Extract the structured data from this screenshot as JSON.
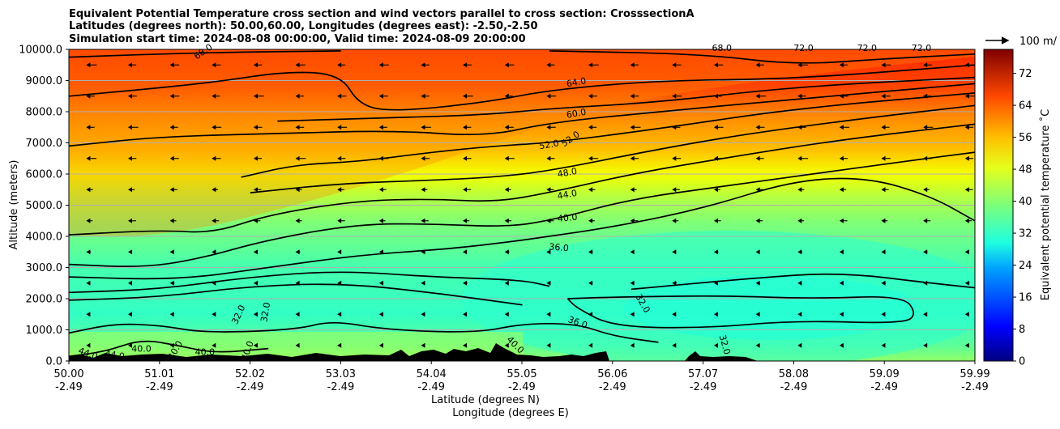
{
  "chart_data": {
    "type": "contour",
    "title_lines": [
      "Equivalent Potential Temperature cross section and wind vectors parallel to cross section: CrosssectionA",
      "Latitudes (degrees north): 50.00,60.00, Longitudes (degrees east): -2.50,-2.50",
      "Simulation start time: 2024-08-08 00:00:00, Valid time: 2024-08-09 20:00:00"
    ],
    "ylabel": "Altitude (meters)",
    "xlabel_lines": [
      "Latitude (degrees N)",
      "Longitude (degrees E)"
    ],
    "ylim": [
      0,
      10000
    ],
    "y_ticks": [
      "0.0",
      "1000.0",
      "2000.0",
      "3000.0",
      "4000.0",
      "5000.0",
      "6000.0",
      "7000.0",
      "8000.0",
      "9000.0",
      "10000.0"
    ],
    "x_ticks": [
      {
        "lat": "50.00",
        "lon": "-2.49"
      },
      {
        "lat": "51.01",
        "lon": "-2.49"
      },
      {
        "lat": "52.02",
        "lon": "-2.49"
      },
      {
        "lat": "53.03",
        "lon": "-2.49"
      },
      {
        "lat": "54.04",
        "lon": "-2.49"
      },
      {
        "lat": "55.05",
        "lon": "-2.49"
      },
      {
        "lat": "56.06",
        "lon": "-2.49"
      },
      {
        "lat": "57.07",
        "lon": "-2.49"
      },
      {
        "lat": "58.08",
        "lon": "-2.49"
      },
      {
        "lat": "59.09",
        "lon": "-2.49"
      },
      {
        "lat": "59.99",
        "lon": "-2.49"
      }
    ],
    "colorbar": {
      "label": "Equivalent potential temperature ˚C",
      "ticks": [
        "0",
        "8",
        "16",
        "24",
        "32",
        "40",
        "48",
        "56",
        "64",
        "72"
      ],
      "range": [
        0,
        78
      ]
    },
    "quiver_key": "100 m/",
    "contour_levels": [
      32,
      36,
      40,
      44,
      48,
      52,
      56,
      60,
      64,
      68
    ],
    "contour_labels": [
      "68.0",
      "64.0",
      "60.0",
      "52.0",
      "52.0",
      "48.0",
      "44.0",
      "40.0",
      "36.0",
      "36.0",
      "32.0",
      "32.0",
      "32.0",
      "32.0",
      "40.0",
      "40.0",
      "40.0",
      "40.0",
      "40.0",
      "44.0",
      "44.0",
      "68.0",
      "72.0",
      "72.0",
      "72.0"
    ],
    "contours": [
      {
        "level": 68,
        "points": [
          [
            50.0,
            9750
          ],
          [
            51.5,
            9900
          ],
          [
            53.0,
            9950
          ]
        ]
      },
      {
        "level": 68,
        "points": [
          [
            55.3,
            9950
          ],
          [
            57.0,
            9850
          ],
          [
            58.0,
            9500
          ],
          [
            59.0,
            9700
          ],
          [
            59.99,
            9850
          ]
        ]
      },
      {
        "level": 64,
        "points": [
          [
            50.0,
            8500
          ],
          [
            51.5,
            8900
          ],
          [
            52.4,
            9300
          ],
          [
            53.0,
            9200
          ],
          [
            53.2,
            8200
          ],
          [
            53.6,
            8000
          ],
          [
            54.6,
            8300
          ],
          [
            55.3,
            8700
          ],
          [
            56.5,
            9000
          ],
          [
            58.0,
            9050
          ],
          [
            59.99,
            9500
          ]
        ]
      },
      {
        "level": 60,
        "points": [
          [
            52.3,
            7700
          ],
          [
            53.5,
            7800
          ],
          [
            54.6,
            7900
          ],
          [
            55.3,
            8100
          ],
          [
            56.5,
            8300
          ],
          [
            58.0,
            8800
          ],
          [
            59.99,
            9100
          ]
        ]
      },
      {
        "level": 56,
        "points": [
          [
            50.0,
            6900
          ],
          [
            51.0,
            7200
          ],
          [
            52.3,
            7300
          ],
          [
            53.6,
            7400
          ],
          [
            54.6,
            7200
          ],
          [
            55.3,
            7650
          ],
          [
            56.5,
            8000
          ],
          [
            58.0,
            8400
          ],
          [
            59.99,
            8900
          ]
        ]
      },
      {
        "level": 52,
        "points": [
          [
            51.9,
            5900
          ],
          [
            52.5,
            6300
          ],
          [
            53.2,
            6400
          ],
          [
            54.0,
            6700
          ],
          [
            54.7,
            6900
          ],
          [
            55.3,
            7000
          ],
          [
            56.5,
            7450
          ],
          [
            58.0,
            8100
          ],
          [
            59.99,
            8600
          ]
        ]
      },
      {
        "level": 48,
        "points": [
          [
            52.0,
            5400
          ],
          [
            53.0,
            5700
          ],
          [
            54.0,
            5800
          ],
          [
            54.7,
            5900
          ],
          [
            55.3,
            6100
          ],
          [
            56.5,
            6800
          ],
          [
            57.5,
            7300
          ],
          [
            58.8,
            7800
          ],
          [
            59.99,
            8200
          ]
        ]
      },
      {
        "level": 44,
        "points": [
          [
            50.0,
            4050
          ],
          [
            51.0,
            4200
          ],
          [
            51.6,
            4100
          ],
          [
            52.2,
            4700
          ],
          [
            53.2,
            5150
          ],
          [
            54.0,
            5200
          ],
          [
            54.7,
            5100
          ],
          [
            55.3,
            5400
          ],
          [
            56.2,
            6000
          ],
          [
            57.2,
            6500
          ],
          [
            58.5,
            7100
          ],
          [
            59.99,
            7600
          ]
        ]
      },
      {
        "level": 40,
        "points": [
          [
            50.0,
            3100
          ],
          [
            50.8,
            3000
          ],
          [
            51.4,
            3250
          ],
          [
            52.2,
            3900
          ],
          [
            53.2,
            4400
          ],
          [
            54.0,
            4400
          ],
          [
            54.8,
            4300
          ],
          [
            55.3,
            4500
          ],
          [
            56.2,
            5200
          ],
          [
            57.2,
            5600
          ],
          [
            58.2,
            6000
          ],
          [
            59.2,
            6400
          ],
          [
            59.99,
            6700
          ]
        ]
      },
      {
        "level": 36,
        "points": [
          [
            50.0,
            2700
          ],
          [
            51.2,
            2600
          ],
          [
            52.2,
            3000
          ],
          [
            53.2,
            3400
          ],
          [
            54.2,
            3600
          ],
          [
            54.8,
            3800
          ],
          [
            55.3,
            4000
          ],
          [
            56.0,
            4300
          ],
          [
            57.0,
            4900
          ],
          [
            58.0,
            5800
          ],
          [
            58.8,
            5900
          ],
          [
            59.5,
            5300
          ],
          [
            59.99,
            4500
          ]
        ]
      },
      {
        "level": 32,
        "points": [
          [
            55.5,
            2000
          ],
          [
            56.0,
            2050
          ],
          [
            57.2,
            2100
          ],
          [
            58.2,
            2000
          ],
          [
            59.2,
            2100
          ],
          [
            59.35,
            1500
          ],
          [
            59.2,
            1200
          ],
          [
            58.0,
            1300
          ],
          [
            57.0,
            1050
          ],
          [
            56.0,
            1100
          ],
          [
            55.6,
            1700
          ],
          [
            55.5,
            2000
          ]
        ]
      },
      {
        "level": 32,
        "points": [
          [
            56.2,
            2300
          ],
          [
            57.5,
            2650
          ],
          [
            58.5,
            2850
          ],
          [
            59.5,
            2500
          ],
          [
            59.99,
            2350
          ]
        ]
      },
      {
        "level": 36,
        "points": [
          [
            50.0,
            2200
          ],
          [
            51.0,
            2300
          ],
          [
            52.0,
            2700
          ],
          [
            53.0,
            2900
          ],
          [
            54.0,
            2700
          ],
          [
            55.0,
            2600
          ],
          [
            55.3,
            2400
          ]
        ]
      },
      {
        "level": 40,
        "points": [
          [
            50.0,
            1950
          ],
          [
            51.0,
            2050
          ],
          [
            52.0,
            2400
          ],
          [
            53.0,
            2500
          ],
          [
            54.0,
            2200
          ],
          [
            55.0,
            1800
          ]
        ]
      },
      {
        "level": 40,
        "points": [
          [
            50.0,
            900
          ],
          [
            50.5,
            1200
          ],
          [
            51.0,
            1150
          ],
          [
            51.5,
            900
          ],
          [
            52.5,
            1000
          ],
          [
            52.9,
            1300
          ],
          [
            53.5,
            1000
          ],
          [
            54.5,
            900
          ],
          [
            55.0,
            1200
          ],
          [
            55.6,
            1200
          ],
          [
            56.0,
            800
          ],
          [
            56.5,
            600
          ]
        ]
      },
      {
        "level": 44,
        "points": [
          [
            50.0,
            150
          ],
          [
            50.4,
            300
          ],
          [
            50.8,
            700
          ],
          [
            51.2,
            500
          ],
          [
            51.6,
            250
          ],
          [
            52.2,
            400
          ]
        ]
      }
    ],
    "wind_vectors_direction": "westward (negative along cross section)"
  }
}
